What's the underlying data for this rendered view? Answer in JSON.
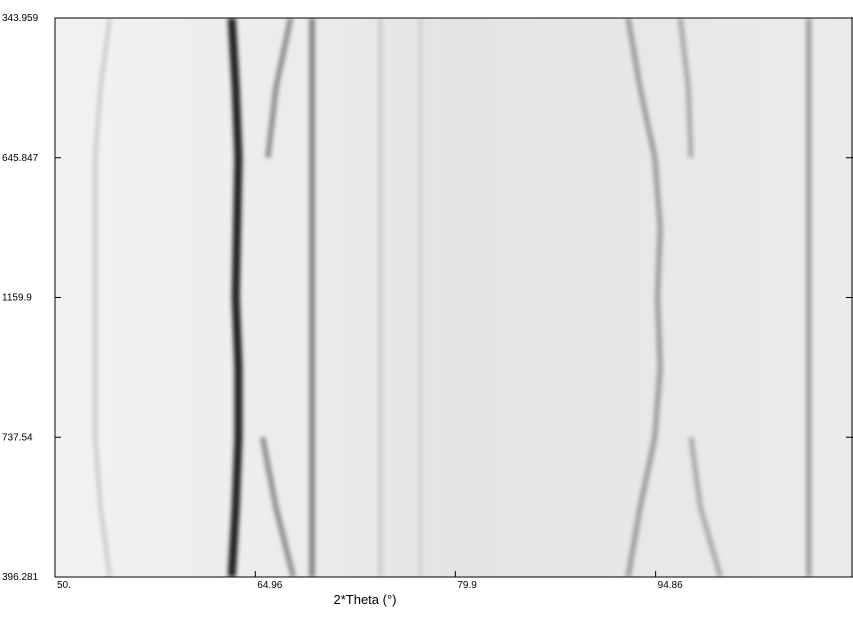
{
  "chart_data": {
    "type": "film",
    "xlabel": "2*Theta (°)",
    "xlim": [
      50,
      109.6
    ],
    "xticks": [
      {
        "value": 50,
        "label": "50."
      },
      64.96,
      79.9,
      94.86
    ],
    "y_labels": [
      "343.959",
      "645.847",
      "1159.9",
      "737.54",
      "396.281"
    ],
    "streaks": [
      {
        "x": [
          63.2,
          63.5,
          63.7,
          63.6,
          63.5,
          63.7,
          63.7,
          63.5,
          63.2
        ],
        "darkness": 0.85
      },
      {
        "x": [
          67.6,
          66.5,
          65.9,
          null,
          null,
          null,
          65.5,
          66.5,
          67.8
        ],
        "darkness": 0.4
      },
      {
        "x": [
          69.2,
          69.2,
          69.2,
          69.2,
          69.2,
          69.2,
          69.2,
          69.2,
          69.2
        ],
        "darkness": 0.45
      },
      {
        "x": [
          106.3,
          106.3,
          106.3,
          106.3,
          106.3,
          106.3,
          106.3,
          106.3,
          106.3
        ],
        "darkness": 0.35
      },
      {
        "x": [
          92.8,
          93.7,
          94.8,
          95.2,
          95.0,
          95.2,
          94.8,
          93.7,
          92.8
        ],
        "darkness": 0.35
      },
      {
        "x": [
          96.7,
          97.3,
          97.5,
          null,
          null,
          null,
          97.5,
          98.2,
          99.7
        ],
        "darkness": 0.3
      },
      {
        "x": [
          54.1,
          53.4,
          53.0,
          53.0,
          53.0,
          53.0,
          53.0,
          53.4,
          54.1
        ],
        "darkness": 0.15
      },
      {
        "x": [
          74.3,
          74.3,
          74.3,
          74.3,
          74.3,
          74.3,
          74.3,
          74.3,
          74.3
        ],
        "darkness": 0.15
      },
      {
        "x": [
          77.3,
          77.3,
          77.3,
          77.3,
          77.3,
          77.3,
          77.3,
          77.3,
          77.3
        ],
        "darkness": 0.12
      }
    ]
  }
}
